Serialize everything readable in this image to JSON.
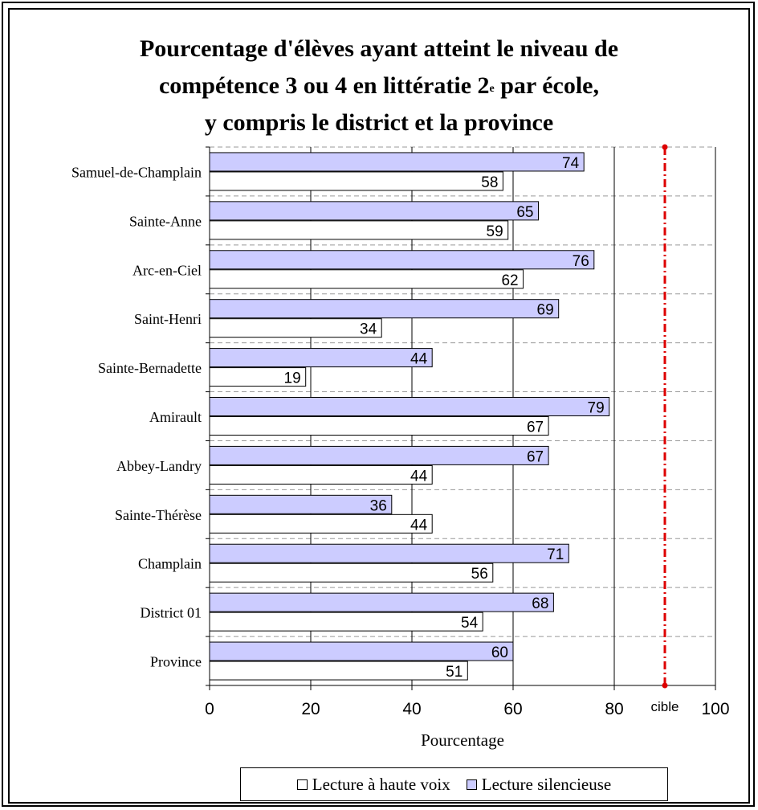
{
  "chart_data": {
    "type": "bar",
    "orientation": "horizontal",
    "title_lines": [
      "Pourcentage d'élèves ayant atteint le niveau de",
      "compétence 3 ou 4 en littératie 2",
      "y compris le district et la province"
    ],
    "title_superscript": "e",
    "title_line2_tail": " par école,",
    "categories": [
      "Samuel-de-Champlain",
      "Sainte-Anne",
      "Arc-en-Ciel",
      "Saint-Henri",
      "Sainte-Bernadette",
      "Amirault",
      "Abbey-Landry",
      "Sainte-Thérèse",
      "Champlain",
      "District 01",
      "Province"
    ],
    "series": [
      {
        "name": "Lecture silencieuse",
        "color": "#ccccff",
        "values": [
          74,
          65,
          76,
          69,
          44,
          79,
          67,
          36,
          71,
          68,
          60
        ]
      },
      {
        "name": "Lecture à haute voix",
        "color": "#ffffff",
        "values": [
          58,
          59,
          62,
          34,
          19,
          67,
          44,
          44,
          56,
          54,
          51
        ]
      }
    ],
    "xlabel": "Pourcentage",
    "xlim": [
      0,
      100
    ],
    "xticks": [
      0,
      20,
      40,
      60,
      80,
      100
    ],
    "target": {
      "value": 90,
      "label": "cible",
      "color": "#dd0000"
    },
    "legend_order": [
      "Lecture à haute voix",
      "Lecture silencieuse"
    ],
    "legend_placement": "bottom"
  }
}
